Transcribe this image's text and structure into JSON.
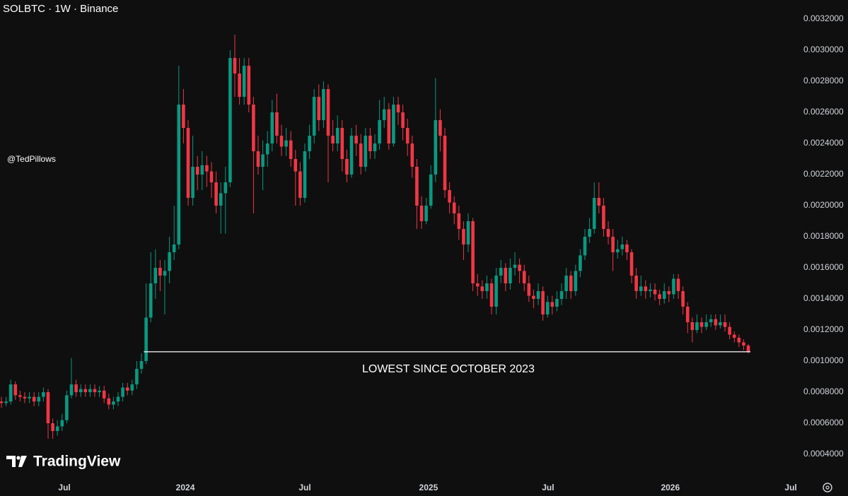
{
  "chart_data": {
    "type": "candlestick",
    "title": "SOLBTC · 1W · Binance",
    "author": "@TedPillows",
    "brand": "TradingView",
    "annotation": "LOWEST SINCE OCTOBER 2023",
    "hline": 0.00106,
    "up_color": "#089981",
    "down_color": "#f23645",
    "grid": false,
    "open": [
      0.00074,
      0.00073,
      0.00074,
      0.00085,
      0.00078,
      0.00077,
      0.00076,
      0.00077,
      0.00074,
      0.00077,
      0.0008,
      0.0006,
      0.00055,
      0.00058,
      0.00062,
      0.00078,
      0.00085,
      0.0008,
      0.00082,
      0.0008,
      0.00082,
      0.0008,
      0.00081,
      0.00076,
      0.00072,
      0.00074,
      0.00077,
      0.00083,
      0.00081,
      0.00085,
      0.00095,
      0.001,
      0.00128,
      0.0015,
      0.0016,
      0.00155,
      0.00158,
      0.0017,
      0.00175,
      0.00265,
      0.0025,
      0.00205,
      0.00225,
      0.0022,
      0.00226,
      0.00222,
      0.00215,
      0.002,
      0.00208,
      0.00215,
      0.00295,
      0.00285,
      0.0027,
      0.0029,
      0.00265,
      0.00235,
      0.00225,
      0.00233,
      0.0024,
      0.0026,
      0.00245,
      0.00238,
      0.00242,
      0.0023,
      0.00222,
      0.00205,
      0.00235,
      0.00245,
      0.0027,
      0.00255,
      0.00275,
      0.00245,
      0.0024,
      0.0025,
      0.0023,
      0.0022,
      0.00245,
      0.0024,
      0.00225,
      0.00245,
      0.00235,
      0.0024,
      0.00255,
      0.00262,
      0.0024,
      0.00265,
      0.0026,
      0.0025,
      0.0024,
      0.00225,
      0.002,
      0.0019,
      0.002,
      0.0022,
      0.00255,
      0.00245,
      0.0021,
      0.00202,
      0.00195,
      0.00185,
      0.00175,
      0.0019,
      0.0015,
      0.00148,
      0.00145,
      0.0015,
      0.00135,
      0.00155,
      0.0016,
      0.0015,
      0.0016,
      0.00162,
      0.00158,
      0.0015,
      0.00142,
      0.0014,
      0.00145,
      0.0013,
      0.00138,
      0.00135,
      0.0014,
      0.00145,
      0.00155,
      0.00145,
      0.00158,
      0.00168,
      0.0018,
      0.00185,
      0.00205,
      0.002,
      0.00185,
      0.0018,
      0.0017,
      0.00172,
      0.00175,
      0.0017,
      0.00155,
      0.00145,
      0.00148,
      0.00145,
      0.00146,
      0.00143,
      0.0014,
      0.00145,
      0.00143,
      0.00153,
      0.00145,
      0.00135,
      0.00125,
      0.0012,
      0.00125,
      0.00122,
      0.00125,
      0.00127,
      0.00123,
      0.00125,
      0.00122,
      0.00117,
      0.00115,
      0.00112,
      0.0011
    ],
    "high": [
      0.00077,
      0.00077,
      0.00088,
      0.00087,
      0.00081,
      0.0008,
      0.0008,
      0.0008,
      0.0008,
      0.00083,
      0.00082,
      0.00063,
      0.00062,
      0.00066,
      0.00081,
      0.00102,
      0.00088,
      0.00085,
      0.00085,
      0.00085,
      0.00085,
      0.00084,
      0.00084,
      0.00079,
      0.00077,
      0.0008,
      0.00086,
      0.00086,
      0.00088,
      0.001,
      0.00105,
      0.0015,
      0.0017,
      0.00172,
      0.00165,
      0.00165,
      0.0018,
      0.002,
      0.0029,
      0.00275,
      0.00255,
      0.00245,
      0.00232,
      0.00235,
      0.00232,
      0.00228,
      0.00222,
      0.00215,
      0.00225,
      0.003,
      0.0031,
      0.00295,
      0.00295,
      0.00295,
      0.0027,
      0.00245,
      0.00242,
      0.00248,
      0.00268,
      0.00272,
      0.00252,
      0.0025,
      0.00248,
      0.00236,
      0.00228,
      0.0024,
      0.00252,
      0.00275,
      0.00278,
      0.0028,
      0.00278,
      0.00255,
      0.00258,
      0.00255,
      0.00236,
      0.0025,
      0.00252,
      0.00246,
      0.0025,
      0.0025,
      0.00246,
      0.00268,
      0.0027,
      0.00266,
      0.0027,
      0.0027,
      0.00265,
      0.00256,
      0.00245,
      0.0023,
      0.00206,
      0.00205,
      0.00226,
      0.00282,
      0.00262,
      0.0025,
      0.00215,
      0.00206,
      0.002,
      0.0019,
      0.00195,
      0.00192,
      0.00156,
      0.00152,
      0.00155,
      0.00153,
      0.0016,
      0.00165,
      0.00163,
      0.00166,
      0.0017,
      0.00166,
      0.00162,
      0.00155,
      0.00146,
      0.0015,
      0.00148,
      0.00142,
      0.00142,
      0.00145,
      0.0015,
      0.0016,
      0.00158,
      0.00162,
      0.00172,
      0.00185,
      0.00192,
      0.00215,
      0.00215,
      0.00205,
      0.0019,
      0.00185,
      0.00178,
      0.0018,
      0.00178,
      0.00172,
      0.0016,
      0.00155,
      0.00152,
      0.0015,
      0.0015,
      0.00146,
      0.0015,
      0.00148,
      0.00156,
      0.00156,
      0.00148,
      0.00138,
      0.00128,
      0.0013,
      0.00128,
      0.0013,
      0.0013,
      0.0013,
      0.0013,
      0.0013,
      0.00125,
      0.00119,
      0.00117,
      0.00114,
      0.00111
    ],
    "low": [
      0.0007,
      0.00071,
      0.00072,
      0.00075,
      0.00074,
      0.00073,
      0.00073,
      0.00071,
      0.00071,
      0.00074,
      0.0005,
      0.0005,
      0.00052,
      0.00055,
      0.0006,
      0.00076,
      0.00077,
      0.00077,
      0.00077,
      0.00077,
      0.00077,
      0.00077,
      0.00073,
      0.00069,
      0.00069,
      0.00071,
      0.00074,
      0.00078,
      0.00078,
      0.00082,
      0.00092,
      0.00098,
      0.00125,
      0.0014,
      0.00145,
      0.0013,
      0.0015,
      0.00165,
      0.00172,
      0.0024,
      0.002,
      0.002,
      0.0021,
      0.0021,
      0.00212,
      0.00205,
      0.00195,
      0.00182,
      0.00182,
      0.00212,
      0.0027,
      0.00265,
      0.00265,
      0.0026,
      0.00195,
      0.0022,
      0.0021,
      0.00225,
      0.00235,
      0.0024,
      0.00232,
      0.00232,
      0.00225,
      0.002,
      0.002,
      0.00202,
      0.0023,
      0.0024,
      0.00248,
      0.0025,
      0.00215,
      0.00235,
      0.00235,
      0.00222,
      0.00215,
      0.00218,
      0.00232,
      0.0022,
      0.00222,
      0.0023,
      0.0023,
      0.00236,
      0.0025,
      0.00236,
      0.00238,
      0.00252,
      0.00242,
      0.00232,
      0.00218,
      0.00185,
      0.00185,
      0.00188,
      0.00198,
      0.00215,
      0.00235,
      0.00205,
      0.00195,
      0.00188,
      0.00178,
      0.00165,
      0.0017,
      0.00145,
      0.00142,
      0.0014,
      0.0014,
      0.0013,
      0.0013,
      0.0015,
      0.00145,
      0.00146,
      0.00155,
      0.0015,
      0.00145,
      0.00138,
      0.00134,
      0.00136,
      0.00126,
      0.00128,
      0.0013,
      0.00132,
      0.00136,
      0.0014,
      0.0014,
      0.00142,
      0.00154,
      0.00165,
      0.00176,
      0.00182,
      0.00195,
      0.0018,
      0.00175,
      0.00158,
      0.00166,
      0.00168,
      0.00165,
      0.0015,
      0.0014,
      0.00142,
      0.0014,
      0.00141,
      0.00139,
      0.00136,
      0.00137,
      0.00138,
      0.0014,
      0.0014,
      0.0013,
      0.00118,
      0.00112,
      0.00118,
      0.00118,
      0.0012,
      0.00122,
      0.0012,
      0.00121,
      0.00119,
      0.00114,
      0.00112,
      0.00109,
      0.00107,
      0.00105
    ],
    "close": [
      0.00073,
      0.00074,
      0.00085,
      0.00078,
      0.00077,
      0.00076,
      0.00077,
      0.00074,
      0.00077,
      0.0008,
      0.0006,
      0.00055,
      0.00058,
      0.00062,
      0.00078,
      0.00085,
      0.0008,
      0.00082,
      0.0008,
      0.00082,
      0.0008,
      0.00081,
      0.00076,
      0.00072,
      0.00074,
      0.00077,
      0.00083,
      0.00081,
      0.00085,
      0.00095,
      0.001,
      0.00128,
      0.0015,
      0.0016,
      0.00155,
      0.00158,
      0.0017,
      0.00175,
      0.00265,
      0.0025,
      0.00205,
      0.00225,
      0.0022,
      0.00226,
      0.00222,
      0.00215,
      0.002,
      0.00208,
      0.00215,
      0.00295,
      0.00285,
      0.0027,
      0.0029,
      0.00265,
      0.00235,
      0.00225,
      0.00233,
      0.0024,
      0.0026,
      0.00245,
      0.00238,
      0.00242,
      0.0023,
      0.00222,
      0.00205,
      0.00235,
      0.00245,
      0.0027,
      0.00255,
      0.00275,
      0.00245,
      0.0024,
      0.0025,
      0.0023,
      0.0022,
      0.00245,
      0.0024,
      0.00225,
      0.00245,
      0.00235,
      0.0024,
      0.00255,
      0.00262,
      0.0024,
      0.00265,
      0.0026,
      0.0025,
      0.0024,
      0.00225,
      0.002,
      0.0019,
      0.002,
      0.0022,
      0.00255,
      0.00245,
      0.0021,
      0.00202,
      0.00195,
      0.00185,
      0.00175,
      0.0019,
      0.0015,
      0.00148,
      0.00145,
      0.0015,
      0.00135,
      0.00155,
      0.0016,
      0.0015,
      0.0016,
      0.00162,
      0.00158,
      0.0015,
      0.00142,
      0.0014,
      0.00145,
      0.0013,
      0.00138,
      0.00135,
      0.0014,
      0.00145,
      0.00155,
      0.00145,
      0.00158,
      0.00168,
      0.0018,
      0.00185,
      0.00205,
      0.002,
      0.00185,
      0.0018,
      0.0017,
      0.00172,
      0.00175,
      0.0017,
      0.00155,
      0.00145,
      0.00148,
      0.00145,
      0.00146,
      0.00143,
      0.0014,
      0.00145,
      0.00143,
      0.00153,
      0.00145,
      0.00135,
      0.00125,
      0.0012,
      0.00125,
      0.00122,
      0.00125,
      0.00127,
      0.00123,
      0.00125,
      0.00122,
      0.00117,
      0.00115,
      0.00112,
      0.0011,
      0.00106
    ],
    "xlim": [
      -0.3,
      170.6
    ],
    "xticks": [
      {
        "value": 13.5,
        "label": "Jul"
      },
      {
        "value": 39.4,
        "label": "2024"
      },
      {
        "value": 65,
        "label": "Jul"
      },
      {
        "value": 91.5,
        "label": "2025"
      },
      {
        "value": 117.1,
        "label": "Jul"
      },
      {
        "value": 143.3,
        "label": "2026"
      },
      {
        "value": 169.1,
        "label": "Jul"
      }
    ],
    "ylim": [
      0.000232,
      0.003323
    ],
    "yticks": [
      {
        "value": 0.0004,
        "label": "0.0004000"
      },
      {
        "value": 0.0006,
        "label": "0.0006000"
      },
      {
        "value": 0.0008,
        "label": "0.0008000"
      },
      {
        "value": 0.001,
        "label": "0.0010000"
      },
      {
        "value": 0.0012,
        "label": "0.0012000"
      },
      {
        "value": 0.0014,
        "label": "0.0014000"
      },
      {
        "value": 0.0016,
        "label": "0.0016000"
      },
      {
        "value": 0.0018,
        "label": "0.0018000"
      },
      {
        "value": 0.002,
        "label": "0.0020000"
      },
      {
        "value": 0.0022,
        "label": "0.0022000"
      },
      {
        "value": 0.0024,
        "label": "0.0024000"
      },
      {
        "value": 0.0026,
        "label": "0.0026000"
      },
      {
        "value": 0.0028,
        "label": "0.0028000"
      },
      {
        "value": 0.003,
        "label": "0.0030000"
      },
      {
        "value": 0.0032,
        "label": "0.0032000"
      }
    ]
  }
}
